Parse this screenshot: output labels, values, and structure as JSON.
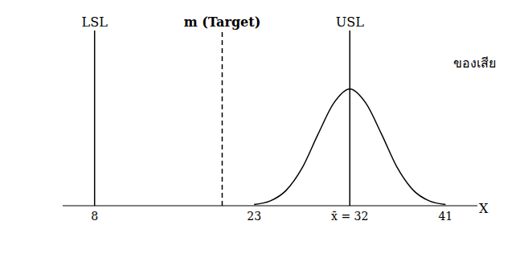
{
  "chart_data": {
    "type": "line",
    "x_label": "X",
    "xlim": [
      5,
      44
    ],
    "xticks": [
      8,
      23,
      {
        "value": 32,
        "label": "x̄ = 32"
      },
      41
    ],
    "ylim": [
      0,
      150
    ],
    "tick_labels": "x",
    "grid": false,
    "x": [
      23,
      24.5,
      26,
      27.5,
      29,
      30.5,
      32,
      33.5,
      35,
      36.5,
      38,
      39.5,
      41
    ],
    "values": [
      1,
      4,
      13,
      32,
      61,
      88,
      100,
      88,
      61,
      32,
      13,
      4,
      1
    ],
    "color": "#000000",
    "spec_lines": [
      {
        "label": "LSL",
        "value": 8,
        "line_style": "solid"
      },
      {
        "label": "m (Target)",
        "value": 20,
        "line_style": "dashed"
      },
      {
        "label": "USL",
        "value": 32,
        "line_style": "solid"
      }
    ],
    "annotations": [
      "ของเสีย"
    ]
  }
}
